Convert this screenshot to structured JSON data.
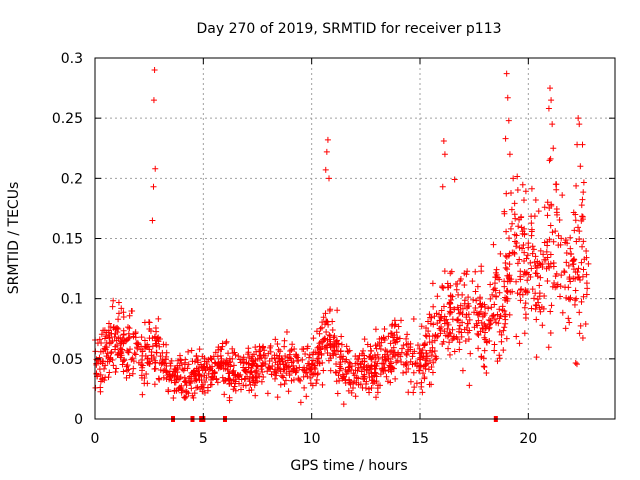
{
  "chart_data": {
    "type": "scatter",
    "title": "Day 270 of 2019, SRMTID for receiver p113",
    "xlabel": "GPS time / hours",
    "ylabel": "SRMTID / TECUs",
    "xlim": [
      0,
      24
    ],
    "ylim": [
      0,
      0.3
    ],
    "xticks": [
      0,
      5,
      10,
      15,
      20
    ],
    "xtick_labels": [
      "0",
      "5",
      "10",
      "15",
      "20"
    ],
    "yticks": [
      0,
      0.05,
      0.1,
      0.15,
      0.2,
      0.25,
      0.3
    ],
    "ytick_labels": [
      "0",
      "0.05",
      "0.1",
      "0.15",
      "0.2",
      "0.25",
      "0.3"
    ],
    "grid": true,
    "marker": "+",
    "color": "#ff0000",
    "time_range_hours": [
      0.0,
      22.8
    ],
    "profile": [
      {
        "x": 0.0,
        "y": 0.045
      },
      {
        "x": 1.0,
        "y": 0.065
      },
      {
        "x": 2.0,
        "y": 0.06
      },
      {
        "x": 2.7,
        "y": 0.06
      },
      {
        "x": 3.5,
        "y": 0.035
      },
      {
        "x": 4.5,
        "y": 0.035
      },
      {
        "x": 5.5,
        "y": 0.045
      },
      {
        "x": 7.0,
        "y": 0.04
      },
      {
        "x": 8.5,
        "y": 0.045
      },
      {
        "x": 10.0,
        "y": 0.04
      },
      {
        "x": 10.7,
        "y": 0.07
      },
      {
        "x": 11.5,
        "y": 0.04
      },
      {
        "x": 13.0,
        "y": 0.045
      },
      {
        "x": 14.0,
        "y": 0.06
      },
      {
        "x": 15.0,
        "y": 0.05
      },
      {
        "x": 16.0,
        "y": 0.08
      },
      {
        "x": 17.0,
        "y": 0.09
      },
      {
        "x": 18.2,
        "y": 0.08
      },
      {
        "x": 18.7,
        "y": 0.1
      },
      {
        "x": 19.5,
        "y": 0.14
      },
      {
        "x": 20.5,
        "y": 0.12
      },
      {
        "x": 21.2,
        "y": 0.15
      },
      {
        "x": 21.8,
        "y": 0.12
      },
      {
        "x": 22.5,
        "y": 0.13
      },
      {
        "x": 22.8,
        "y": 0.13
      }
    ],
    "spikes": [
      {
        "x": 2.75,
        "y": 0.29
      },
      {
        "x": 2.72,
        "y": 0.265
      },
      {
        "x": 2.78,
        "y": 0.208
      },
      {
        "x": 2.7,
        "y": 0.193
      },
      {
        "x": 2.65,
        "y": 0.165
      },
      {
        "x": 10.75,
        "y": 0.232
      },
      {
        "x": 10.7,
        "y": 0.222
      },
      {
        "x": 10.65,
        "y": 0.207
      },
      {
        "x": 10.8,
        "y": 0.2
      },
      {
        "x": 16.1,
        "y": 0.231
      },
      {
        "x": 16.15,
        "y": 0.22
      },
      {
        "x": 16.05,
        "y": 0.193
      },
      {
        "x": 16.6,
        "y": 0.199
      },
      {
        "x": 19.0,
        "y": 0.287
      },
      {
        "x": 19.05,
        "y": 0.267
      },
      {
        "x": 19.1,
        "y": 0.248
      },
      {
        "x": 18.95,
        "y": 0.233
      },
      {
        "x": 19.15,
        "y": 0.22
      },
      {
        "x": 19.3,
        "y": 0.2
      },
      {
        "x": 21.0,
        "y": 0.275
      },
      {
        "x": 21.05,
        "y": 0.265
      },
      {
        "x": 20.95,
        "y": 0.258
      },
      {
        "x": 21.1,
        "y": 0.245
      },
      {
        "x": 21.15,
        "y": 0.225
      },
      {
        "x": 22.3,
        "y": 0.25
      },
      {
        "x": 22.35,
        "y": 0.245
      },
      {
        "x": 22.25,
        "y": 0.228
      },
      {
        "x": 22.5,
        "y": 0.228
      },
      {
        "x": 22.4,
        "y": 0.21
      }
    ],
    "bottom_markers": [
      3.6,
      4.5,
      4.9,
      5.0,
      6.0,
      18.5
    ]
  }
}
